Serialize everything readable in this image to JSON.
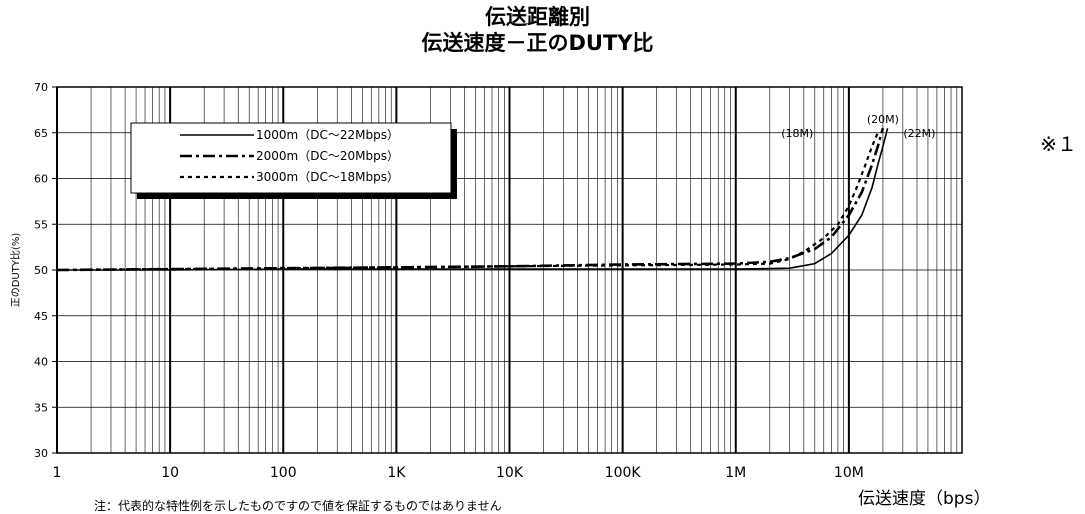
{
  "chart_data": {
    "type": "line",
    "title": "伝送距離別",
    "subtitle": "伝送速度－正のDUTY比",
    "xlabel": "伝送速度（bps）",
    "ylabel": "正のDUTY比(%)",
    "xscale": "log",
    "xlim": [
      1,
      100000000
    ],
    "ylim": [
      30,
      70
    ],
    "xticks": [
      1,
      10,
      100,
      1000,
      10000,
      100000,
      1000000,
      10000000
    ],
    "xtick_labels": [
      "1",
      "10",
      "100",
      "1K",
      "10K",
      "100K",
      "1M",
      "10M"
    ],
    "yticks": [
      30,
      35,
      40,
      45,
      50,
      55,
      60,
      65,
      70
    ],
    "grid": true,
    "legend_position": "top-left",
    "series": [
      {
        "name": "1000m（DC～22Mbps）",
        "dash": "solid",
        "x": [
          1,
          10,
          100,
          1000,
          10000,
          100000,
          1000000,
          3000000,
          5000000,
          7000000,
          10000000,
          13000000,
          16000000,
          18000000,
          20000000,
          22000000
        ],
        "y": [
          50.0,
          50.0,
          50.1,
          50.1,
          50.1,
          50.1,
          50.1,
          50.2,
          50.7,
          51.8,
          53.8,
          56.0,
          59.0,
          61.5,
          63.5,
          65.5
        ]
      },
      {
        "name": "2000m（DC～20Mbps）",
        "dash": "dashdot",
        "x": [
          1,
          10,
          100,
          1000,
          10000,
          100000,
          1000000,
          2000000,
          3000000,
          5000000,
          7000000,
          10000000,
          13000000,
          16000000,
          18000000,
          20000000
        ],
        "y": [
          50.0,
          50.1,
          50.2,
          50.3,
          50.4,
          50.6,
          50.7,
          50.9,
          51.3,
          52.3,
          53.6,
          56.0,
          58.5,
          61.5,
          63.5,
          65.5
        ]
      },
      {
        "name": "3000m（DC～18Mbps）",
        "dash": "dotted",
        "x": [
          1,
          10,
          100,
          1000,
          10000,
          100000,
          1000000,
          2000000,
          3000000,
          4000000,
          6000000,
          8000000,
          10000000,
          12000000,
          14000000,
          16000000,
          18000000
        ],
        "y": [
          50.0,
          50.1,
          50.2,
          50.3,
          50.4,
          50.5,
          50.6,
          50.7,
          51.2,
          52.0,
          53.5,
          55.0,
          57.0,
          59.3,
          61.5,
          63.5,
          65.0
        ]
      }
    ],
    "annotations": [
      {
        "text": "(20M)",
        "x": 20000000,
        "y": 66.5
      },
      {
        "text": "(18M)",
        "x": 3500000,
        "y": 65
      },
      {
        "text": "(22M)",
        "x": 42000000,
        "y": 65
      }
    ]
  },
  "note": "注：代表的な特性例を示したものですので値を保証するものではありません",
  "footnote_mark": "※１"
}
